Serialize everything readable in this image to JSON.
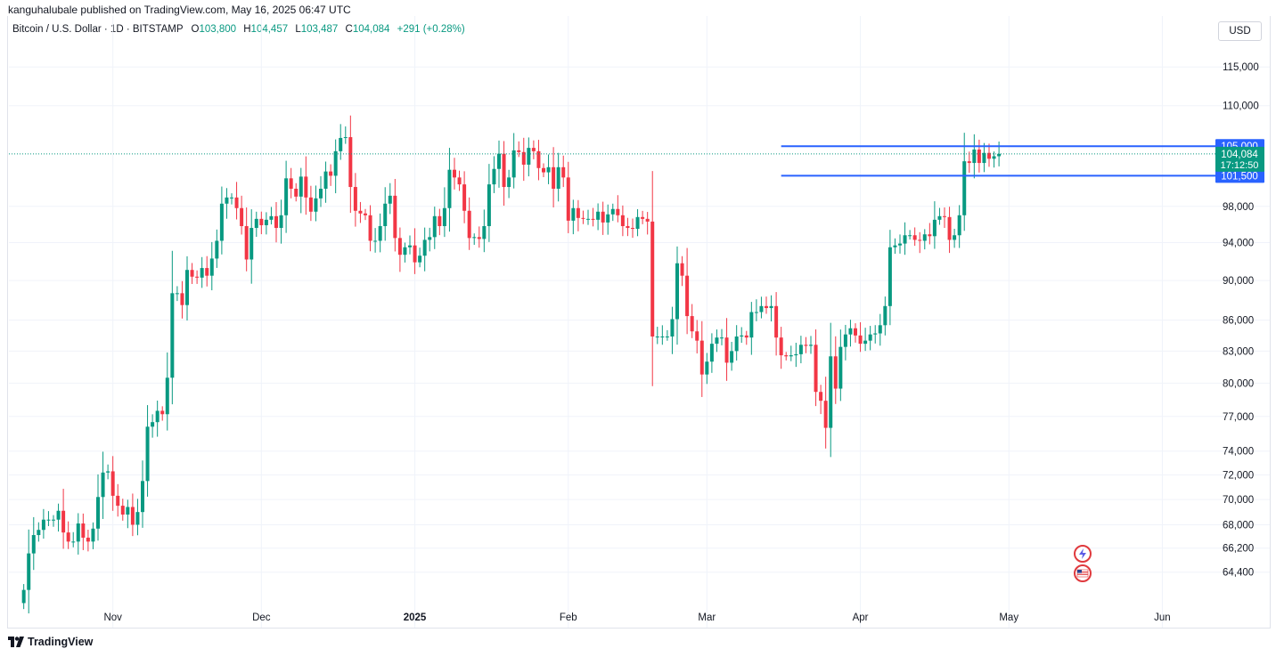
{
  "header": {
    "published": "kanguhalubale published on TradingView.com, May 16, 2025 06:47 UTC",
    "symbol": "Bitcoin / U.S. Dollar · 1D · BITSTAMP",
    "o_label": "O",
    "o_value": "103,800",
    "h_label": "H",
    "h_value": "104,457",
    "l_label": "L",
    "l_value": "103,487",
    "c_label": "C",
    "c_value": "104,084",
    "change": "+291 (+0.28%)",
    "currency": "USD"
  },
  "footer": {
    "brand": "TradingView"
  },
  "colors": {
    "up": "#089981",
    "down": "#f23645",
    "level": "#2962ff",
    "grid": "#f0f3fa"
  },
  "chart_data": {
    "type": "candlestick",
    "y_scale": "log",
    "ylim": [
      62500,
      118000
    ],
    "y_ticks": [
      64400,
      66200,
      68000,
      70000,
      72000,
      74000,
      77000,
      80000,
      83000,
      86000,
      90000,
      94000,
      98000,
      110000,
      115000
    ],
    "y_tick_labels": [
      "64,400",
      "66,200",
      "68,000",
      "70,000",
      "72,000",
      "74,000",
      "77,000",
      "80,000",
      "83,000",
      "86,000",
      "90,000",
      "94,000",
      "98,000",
      "110,000",
      "115,000"
    ],
    "x_labels": [
      {
        "date": "2024-11-01",
        "label": "Nov",
        "bold": false
      },
      {
        "date": "2024-12-01",
        "label": "Dec",
        "bold": false
      },
      {
        "date": "2025-01-01",
        "label": "2025",
        "bold": true
      },
      {
        "date": "2025-02-01",
        "label": "Feb",
        "bold": false
      },
      {
        "date": "2025-03-01",
        "label": "Mar",
        "bold": false
      },
      {
        "date": "2025-04-01",
        "label": "Apr",
        "bold": false
      },
      {
        "date": "2025-05-01",
        "label": "May",
        "bold": false
      },
      {
        "date": "2025-06-01",
        "label": "Jun",
        "bold": false
      }
    ],
    "xlim": [
      "2024-10-11",
      "2025-06-11"
    ],
    "series_start": "2024-10-14",
    "closes": [
      63100,
      65800,
      67200,
      67600,
      68400,
      68400,
      68400,
      69100,
      67400,
      66700,
      66700,
      68100,
      67000,
      66700,
      67700,
      70200,
      72200,
      72300,
      70300,
      69500,
      68800,
      69400,
      68000,
      69000,
      71500,
      76100,
      76500,
      77500,
      77200,
      80500,
      88700,
      88700,
      87500,
      91100,
      90400,
      90300,
      91300,
      90500,
      92300,
      94200,
      98300,
      99000,
      99000,
      97800,
      95800,
      92200,
      95600,
      96600,
      95900,
      96500,
      96900,
      95600,
      97000,
      101200,
      100000,
      99100,
      101400,
      99000,
      97400,
      98900,
      100000,
      102000,
      101500,
      104400,
      106000,
      106100,
      100200,
      97500,
      97200,
      97000,
      94200,
      94200,
      95800,
      98300,
      99200,
      94500,
      92700,
      93500,
      93700,
      91900,
      92600,
      94300,
      94600,
      96900,
      95800,
      97800,
      102200,
      101300,
      100500,
      97500,
      94500,
      94600,
      94400,
      95800,
      100500,
      102300,
      104100,
      100200,
      101300,
      104500,
      104300,
      102800,
      104800,
      104400,
      102400,
      101900,
      102500,
      100000,
      102500,
      101300,
      96400,
      97800,
      96700,
      96600,
      96600,
      96500,
      97400,
      96200,
      97100,
      97700,
      97000,
      95800,
      95600,
      95500,
      96800,
      96600,
      96300,
      84400,
      84400,
      84400,
      84400,
      86100,
      91800,
      90500,
      86400,
      84900,
      84000,
      80800,
      82000,
      83700,
      84300,
      84300,
      81900,
      83000,
      84400,
      84500,
      84300,
      86800,
      86800,
      87400,
      87200,
      87400,
      84300,
      82600,
      82500,
      82600,
      82700,
      83600,
      83500,
      83600,
      79200,
      78400,
      76000,
      82500,
      79500,
      83400,
      84600,
      85200,
      84500,
      83700,
      84000,
      84600,
      84700,
      85500,
      87400,
      93500,
      93700,
      93900,
      94800,
      94800,
      94300,
      94200,
      94900,
      94700,
      96500,
      96900,
      96800,
      94300,
      94800,
      97000,
      103200,
      103000,
      104600,
      103000,
      104200,
      103500,
      103800,
      104084
    ],
    "levels": [
      {
        "value": 105000,
        "label": "105,000"
      },
      {
        "value": 101500,
        "label": "101,500"
      }
    ],
    "last_price": {
      "value": 104084,
      "label": "104,084",
      "countdown": "17:12:50"
    }
  }
}
